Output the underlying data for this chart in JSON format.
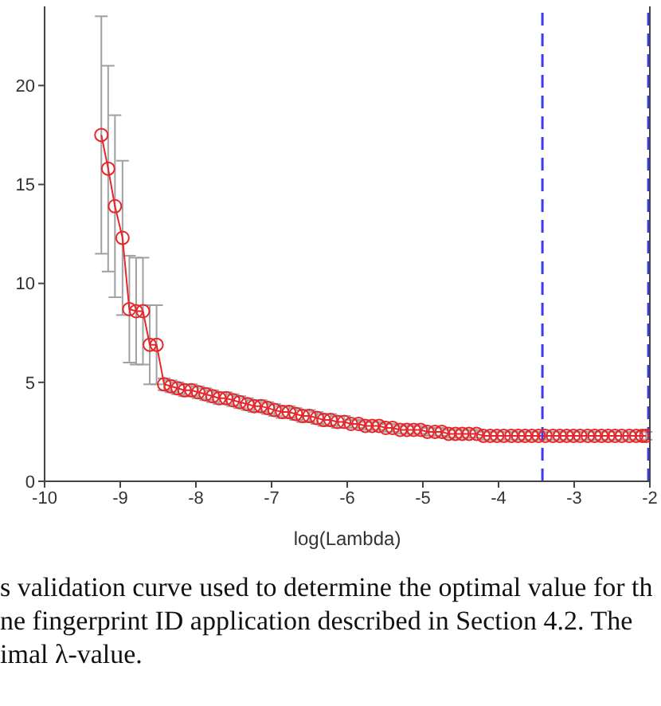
{
  "chart_data": {
    "type": "line",
    "xlabel": "log(Lambda)",
    "xlim": [
      -10,
      -2
    ],
    "xticks": [
      -10,
      -9,
      -8,
      -7,
      -6,
      -5,
      -4,
      -3,
      -2
    ],
    "ylim": [
      0,
      24
    ],
    "yticks": [
      0,
      5,
      10,
      15,
      20
    ],
    "marker": "circle",
    "line_style": "solid",
    "series": [
      {
        "color": "#e8262a",
        "x": [
          -9.25,
          -9.16,
          -9.07,
          -8.97,
          -8.88,
          -8.79,
          -8.7,
          -8.61,
          -8.52,
          -8.42,
          -8.33,
          -8.24,
          -8.15,
          -8.06,
          -7.97,
          -7.87,
          -7.78,
          -7.69,
          -7.6,
          -7.51,
          -7.42,
          -7.32,
          -7.23,
          -7.14,
          -7.05,
          -6.96,
          -6.86,
          -6.77,
          -6.68,
          -6.59,
          -6.5,
          -6.4,
          -6.31,
          -6.22,
          -6.13,
          -6.04,
          -5.95,
          -5.85,
          -5.76,
          -5.67,
          -5.58,
          -5.49,
          -5.4,
          -5.3,
          -5.21,
          -5.12,
          -5.03,
          -4.94,
          -4.84,
          -4.75,
          -4.66,
          -4.57,
          -4.48,
          -4.39,
          -4.29,
          -4.2,
          -4.11,
          -4.02,
          -3.93,
          -3.83,
          -3.74,
          -3.65,
          -3.56,
          -3.47,
          -3.38,
          -3.28,
          -3.19,
          -3.1,
          -3.01,
          -2.92,
          -2.82,
          -2.73,
          -2.64,
          -2.55,
          -2.46,
          -2.37,
          -2.27,
          -2.18,
          -2.1,
          -2.05
        ],
        "values": [
          17.5,
          15.8,
          13.9,
          12.3,
          8.7,
          8.6,
          8.6,
          6.9,
          6.9,
          4.9,
          4.8,
          4.7,
          4.6,
          4.6,
          4.5,
          4.4,
          4.3,
          4.2,
          4.2,
          4.1,
          4.0,
          3.9,
          3.8,
          3.8,
          3.7,
          3.6,
          3.5,
          3.5,
          3.4,
          3.3,
          3.3,
          3.2,
          3.1,
          3.1,
          3.0,
          3.0,
          2.9,
          2.9,
          2.8,
          2.8,
          2.8,
          2.7,
          2.7,
          2.6,
          2.6,
          2.6,
          2.6,
          2.5,
          2.5,
          2.5,
          2.4,
          2.4,
          2.4,
          2.4,
          2.4,
          2.3,
          2.3,
          2.3,
          2.3,
          2.3,
          2.3,
          2.3,
          2.3,
          2.3,
          2.3,
          2.3,
          2.3,
          2.3,
          2.3,
          2.3,
          2.3,
          2.3,
          2.3,
          2.3,
          2.3,
          2.3,
          2.3,
          2.3,
          2.3,
          2.3
        ],
        "errors": [
          6,
          5.2,
          4.6,
          3.9,
          2.7,
          2.7,
          2.7,
          2,
          2,
          0.3,
          0.3,
          0.3,
          0.3,
          0.3,
          0.3,
          0.3,
          0.3,
          0.3,
          0.3,
          0.3,
          0.3,
          0.3,
          0.3,
          0.3,
          0.3,
          0.3,
          0.3,
          0.3,
          0.3,
          0.3,
          0.3,
          0.3,
          0.3,
          0.3,
          0.3,
          0.3,
          0.2,
          0.2,
          0.2,
          0.2,
          0.2,
          0.2,
          0.2,
          0.2,
          0.2,
          0.2,
          0.2,
          0.2,
          0.2,
          0.2,
          0.2,
          0.2,
          0.2,
          0.2,
          0.2,
          0.2,
          0.2,
          0.2,
          0.2,
          0.2,
          0.2,
          0.2,
          0.2,
          0.2,
          0.2,
          0.2,
          0.2,
          0.2,
          0.2,
          0.2,
          0.2,
          0.2,
          0.2,
          0.2,
          0.2,
          0.2,
          0.2,
          0.2,
          0.2,
          0.2
        ]
      }
    ],
    "ref_lines": [
      {
        "axis": "x",
        "value": -3.42,
        "color": "#3b3bf0",
        "line_style": "dashed"
      },
      {
        "axis": "x",
        "value": -2.02,
        "color": "#3b3bf0",
        "line_style": "dashed"
      }
    ],
    "annotations": [
      "s validation curve used to determine the optimal value for th",
      "ne fingerprint ID application described in Section 4.2. The",
      "imal λ-value."
    ]
  }
}
